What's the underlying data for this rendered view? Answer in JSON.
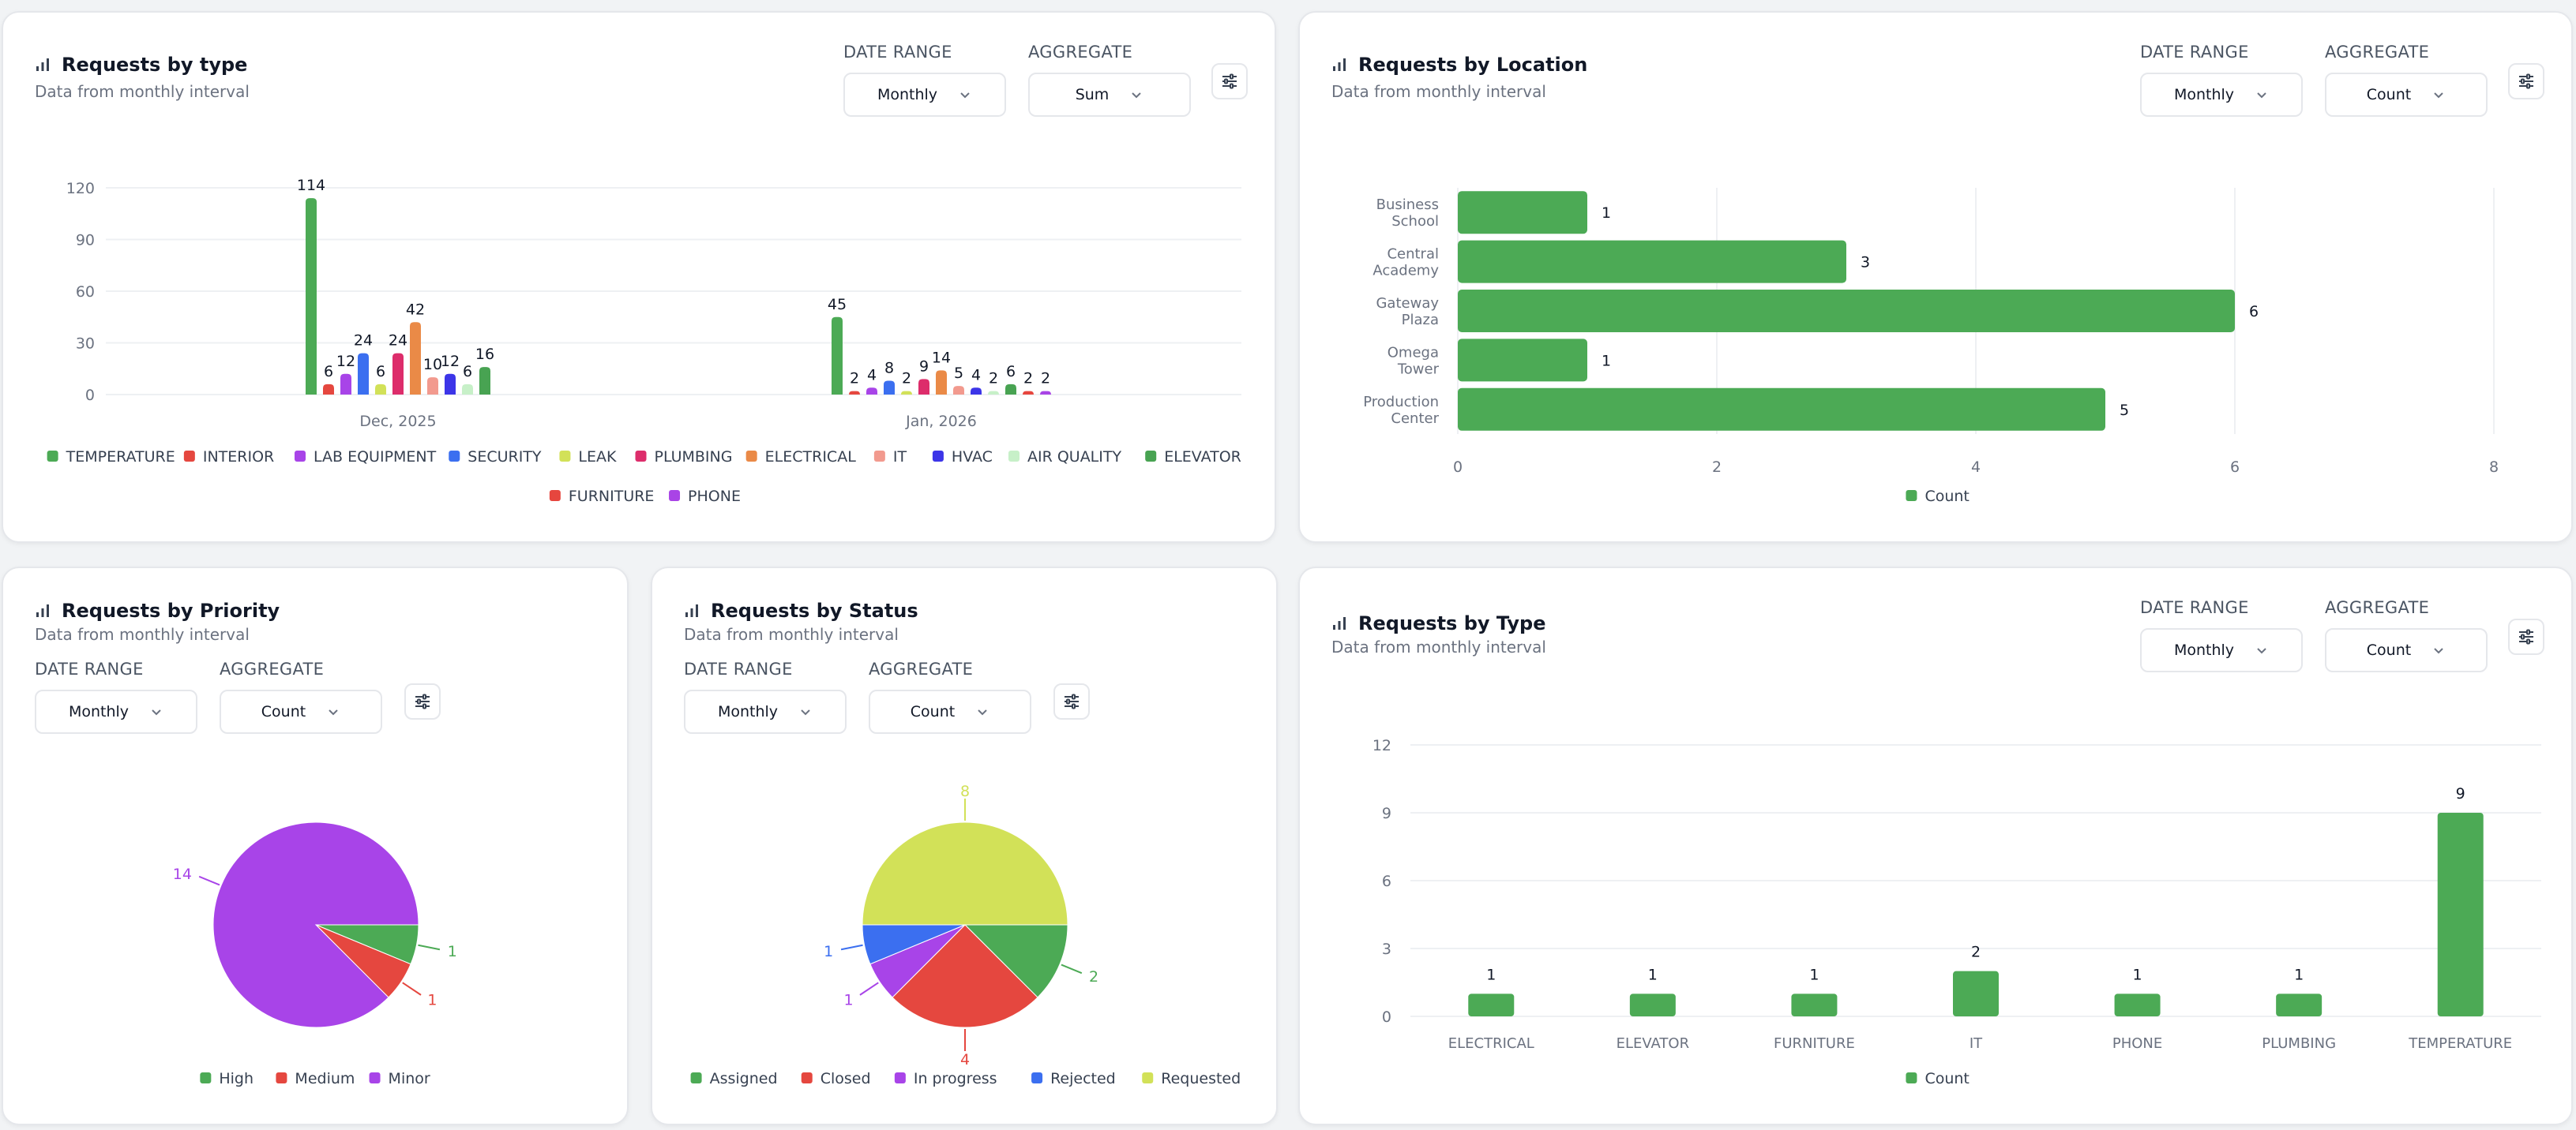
{
  "controls": {
    "date_range_label": "DATE RANGE",
    "aggregate_label": "AGGREGATE",
    "monthly": "Monthly",
    "sum": "Sum",
    "count": "Count"
  },
  "colors": {
    "Assigned": "#4caa55",
    "Closed": "#e5473f",
    "In progress": "#a844e8",
    "Rejected": "#3b6ff0",
    "Requested": "#d2e158",
    "High": "#4caa55",
    "Medium": "#e5473f",
    "Minor": "#a844e8"
  },
  "cards": {
    "c1": {
      "title": "Requests by type",
      "subtitle": "Data from monthly interval"
    },
    "c2": {
      "title": "Requests by Location",
      "subtitle": "Data from monthly interval"
    },
    "c3": {
      "title": "Requests by Priority",
      "subtitle": "Data from monthly interval"
    },
    "c4": {
      "title": "Requests by Status",
      "subtitle": "Data from monthly interval"
    },
    "c5": {
      "title": "Requests by Type",
      "subtitle": "Data from monthly interval"
    }
  },
  "chart_data": [
    {
      "type": "bar",
      "categories": [
        "Dec, 2025",
        "Jan, 2026"
      ],
      "ylim": [
        0,
        120
      ],
      "yticks": [
        0,
        30,
        60,
        90,
        120
      ],
      "aggregate": "Sum",
      "legend_placement": "bottom",
      "series": [
        {
          "name": "TEMPERATURE",
          "color": "#4caa55",
          "values": [
            114,
            45
          ]
        },
        {
          "name": "INTERIOR",
          "color": "#e5473f",
          "values": [
            6,
            2
          ]
        },
        {
          "name": "LAB EQUIPMENT",
          "color": "#a844e8",
          "values": [
            12,
            4
          ]
        },
        {
          "name": "SECURITY",
          "color": "#3b6ff0",
          "values": [
            24,
            8
          ]
        },
        {
          "name": "LEAK",
          "color": "#d2e158",
          "values": [
            6,
            2
          ]
        },
        {
          "name": "PLUMBING",
          "color": "#dd2d6b",
          "values": [
            24,
            9
          ]
        },
        {
          "name": "ELECTRICAL",
          "color": "#ea8a47",
          "values": [
            42,
            14
          ]
        },
        {
          "name": "IT",
          "color": "#f29a8e",
          "values": [
            10,
            5
          ]
        },
        {
          "name": "HVAC",
          "color": "#3c35e8",
          "values": [
            12,
            4
          ]
        },
        {
          "name": "AIR QUALITY",
          "color": "#c7f0c8",
          "values": [
            6,
            2
          ]
        },
        {
          "name": "ELEVATOR",
          "color": "#48a352",
          "values": [
            16,
            6
          ]
        },
        {
          "name": "FURNITURE",
          "color": "#e6463e",
          "values": [
            null,
            2
          ]
        },
        {
          "name": "PHONE",
          "color": "#a944e6",
          "values": [
            null,
            2
          ]
        }
      ]
    },
    {
      "type": "bar",
      "orientation": "horizontal",
      "categories": [
        "Business School",
        "Central Academy",
        "Gateway Plaza",
        "Omega Tower",
        "Production Center"
      ],
      "values": [
        1,
        3,
        6,
        1,
        5
      ],
      "xlim": [
        0,
        8
      ],
      "xticks": [
        0,
        2,
        4,
        6,
        8
      ],
      "aggregate": "Count",
      "series": [
        {
          "name": "Count",
          "color": "#4caa55"
        }
      ],
      "legend_placement": "bottom"
    },
    {
      "type": "pie",
      "aggregate": "Count",
      "slices": [
        {
          "label": "High",
          "value": 1
        },
        {
          "label": "Medium",
          "value": 1
        },
        {
          "label": "Minor",
          "value": 14
        }
      ],
      "legend_placement": "bottom"
    },
    {
      "type": "pie",
      "aggregate": "Count",
      "slices": [
        {
          "label": "Assigned",
          "value": 2
        },
        {
          "label": "Closed",
          "value": 4
        },
        {
          "label": "In progress",
          "value": 1
        },
        {
          "label": "Rejected",
          "value": 1
        },
        {
          "label": "Requested",
          "value": 8
        }
      ],
      "legend_placement": "bottom"
    },
    {
      "type": "bar",
      "categories": [
        "ELECTRICAL",
        "ELEVATOR",
        "FURNITURE",
        "IT",
        "PHONE",
        "PLUMBING",
        "TEMPERATURE"
      ],
      "values": [
        1,
        1,
        1,
        2,
        1,
        1,
        9
      ],
      "ylim": [
        0,
        12
      ],
      "yticks": [
        0,
        3,
        6,
        9,
        12
      ],
      "aggregate": "Count",
      "series": [
        {
          "name": "Count",
          "color": "#4caa55"
        }
      ],
      "legend_placement": "bottom"
    }
  ]
}
